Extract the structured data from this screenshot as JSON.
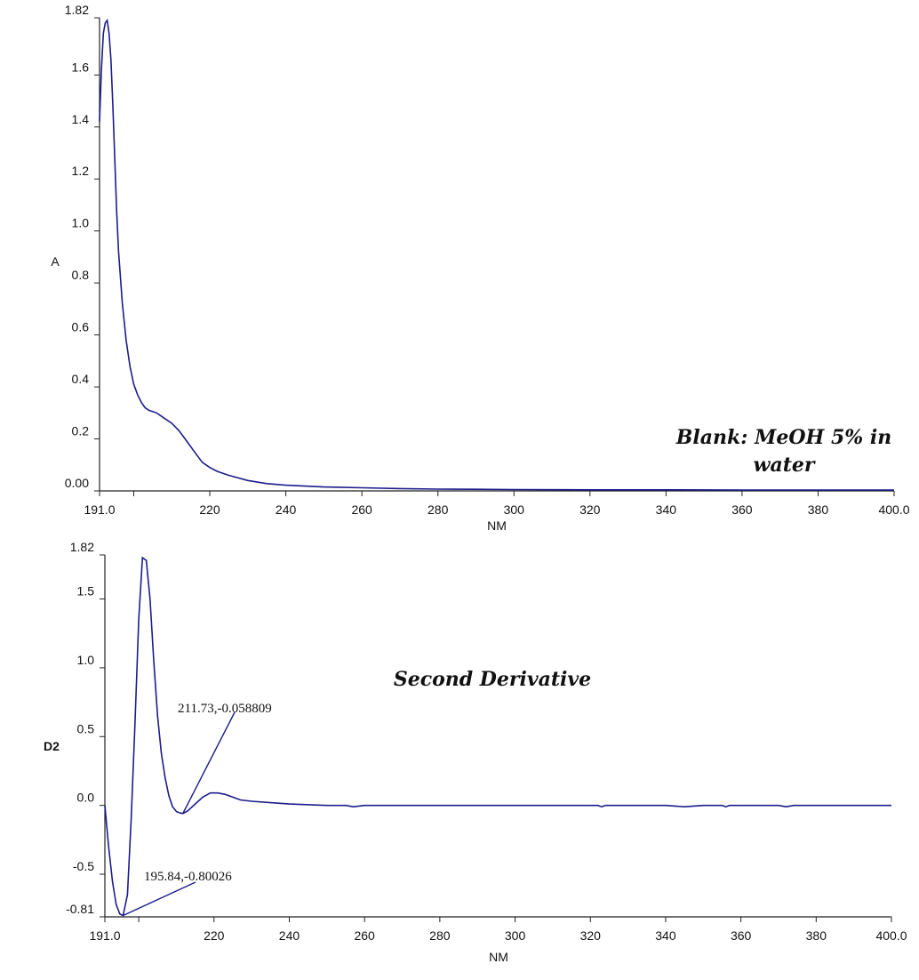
{
  "chart_data": [
    {
      "type": "line",
      "title": "Blank: MeOH 5% in water",
      "title_lines": [
        "Blank: MeOH 5% in",
        "water"
      ],
      "xlabel": "NM",
      "ylabel": "A",
      "xlim": [
        191.0,
        400.0
      ],
      "ylim": [
        0.0,
        1.82
      ],
      "x_ticks": [
        191.0,
        200,
        220,
        240,
        260,
        280,
        300,
        320,
        340,
        360,
        380,
        400.0
      ],
      "x_tick_labels": [
        "191.0",
        "",
        "220",
        "240",
        "260",
        "280",
        "300",
        "320",
        "340",
        "360",
        "380",
        "400.0"
      ],
      "y_ticks": [
        0.0,
        0.2,
        0.4,
        0.6,
        0.8,
        1.0,
        1.2,
        1.4,
        1.6,
        1.82
      ],
      "y_tick_labels": [
        "0.00",
        "0.2",
        "0.4",
        "0.6",
        "0.8",
        "1.0",
        "1.2",
        "1.4",
        "1.6",
        "1.82"
      ],
      "grid": false,
      "series": [
        {
          "x": [
            191.0,
            191.5,
            192.0,
            192.5,
            193.0,
            193.5,
            194.0,
            194.5,
            195.0,
            195.5,
            196.0,
            197.0,
            198.0,
            199.0,
            200.0,
            201.0,
            202.0,
            203.0,
            204.0,
            206.0,
            208.0,
            210.0,
            212.0,
            214.0,
            216.0,
            218.0,
            220.0,
            222.0,
            225.0,
            230.0,
            235.0,
            240.0,
            250.0,
            260.0,
            270.0,
            280.0,
            290.0,
            300.0,
            320.0,
            340.0,
            360.0,
            380.0,
            400.0
          ],
          "y": [
            1.42,
            1.62,
            1.76,
            1.8,
            1.81,
            1.76,
            1.66,
            1.48,
            1.28,
            1.08,
            0.92,
            0.72,
            0.58,
            0.48,
            0.41,
            0.37,
            0.34,
            0.32,
            0.31,
            0.3,
            0.28,
            0.26,
            0.23,
            0.19,
            0.15,
            0.11,
            0.09,
            0.075,
            0.06,
            0.04,
            0.028,
            0.022,
            0.015,
            0.012,
            0.009,
            0.007,
            0.006,
            0.005,
            0.004,
            0.004,
            0.003,
            0.003,
            0.003
          ]
        }
      ]
    },
    {
      "type": "line",
      "title": "Second Derivative",
      "xlabel": "NM",
      "ylabel": "D2",
      "xlim": [
        191.0,
        400.0
      ],
      "ylim": [
        -0.81,
        1.82
      ],
      "x_ticks": [
        191.0,
        200,
        220,
        240,
        260,
        280,
        300,
        320,
        340,
        360,
        380,
        400.0
      ],
      "x_tick_labels": [
        "191.0",
        "",
        "220",
        "240",
        "260",
        "280",
        "300",
        "320",
        "340",
        "360",
        "380",
        "400.0"
      ],
      "y_ticks": [
        -0.81,
        -0.5,
        0.0,
        0.5,
        1.0,
        1.5,
        1.82
      ],
      "y_tick_labels": [
        "-0.81",
        "-0.5",
        "0.0",
        "0.5",
        "1.0",
        "1.5",
        "1.82"
      ],
      "grid": false,
      "annotations": [
        {
          "label": "211.73,-0.058809",
          "x": 211.73,
          "y": -0.058809,
          "text_x": 226.0,
          "text_y": 0.7
        },
        {
          "label": "195.84,-0.80026",
          "x": 195.84,
          "y": -0.80026,
          "text_x": 214.0,
          "text_y": -0.52
        }
      ],
      "series": [
        {
          "x": [
            191.0,
            192.0,
            193.0,
            194.0,
            195.0,
            195.84,
            197.0,
            198.0,
            199.0,
            200.0,
            201.0,
            202.0,
            203.0,
            204.0,
            205.0,
            206.0,
            207.0,
            208.0,
            209.0,
            210.0,
            211.0,
            211.73,
            213.0,
            215.0,
            217.0,
            219.0,
            221.0,
            223.0,
            225.0,
            227.0,
            230.0,
            235.0,
            240.0,
            250.0,
            255.0,
            257.0,
            260.0,
            300.0,
            322.0,
            323.0,
            324.0,
            340.0,
            345.0,
            350.0,
            355.0,
            356.0,
            357.0,
            360.0,
            370.0,
            372.0,
            374.0,
            380.0,
            400.0
          ],
          "y": [
            0.0,
            -0.3,
            -0.55,
            -0.72,
            -0.79,
            -0.8,
            -0.65,
            -0.1,
            0.6,
            1.35,
            1.8,
            1.78,
            1.5,
            1.05,
            0.65,
            0.38,
            0.2,
            0.07,
            -0.01,
            -0.045,
            -0.055,
            -0.058809,
            -0.04,
            0.01,
            0.06,
            0.09,
            0.09,
            0.08,
            0.06,
            0.04,
            0.03,
            0.02,
            0.01,
            0.0,
            0.0,
            -0.01,
            0.0,
            0.0,
            0.0,
            -0.01,
            0.0,
            0.0,
            -0.01,
            0.0,
            0.0,
            -0.01,
            0.0,
            0.0,
            0.0,
            -0.01,
            0.0,
            0.0,
            0.0
          ]
        }
      ]
    }
  ]
}
